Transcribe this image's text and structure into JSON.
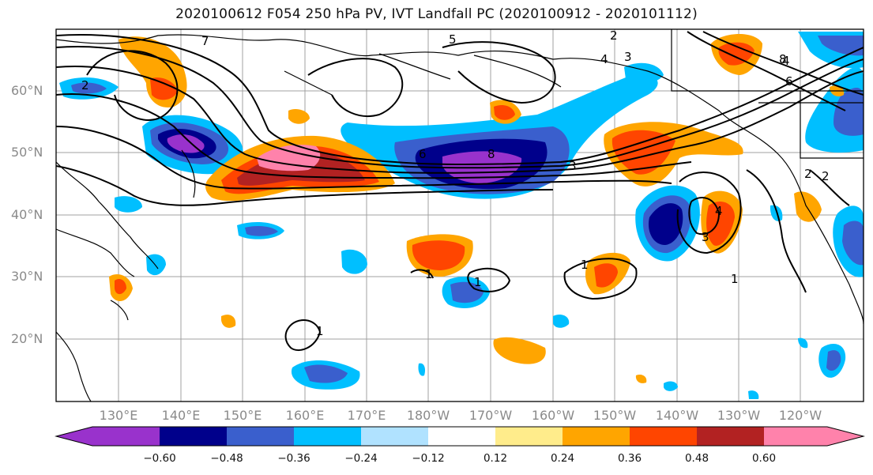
{
  "title": "2020100612 F054 250 hPa PV, IVT Landfall PC (2020100912 - 2020101112)",
  "lat_labels": [
    "60°N",
    "50°N",
    "40°N",
    "30°N",
    "20°N"
  ],
  "lon_labels": [
    "130°E",
    "140°E",
    "150°E",
    "160°E",
    "170°E",
    "180°W",
    "170°W",
    "160°W",
    "150°W",
    "140°W",
    "130°W",
    "120°W"
  ],
  "colorbar": {
    "ticks": [
      "−0.60",
      "−0.48",
      "−0.36",
      "−0.24",
      "−0.12",
      "0.12",
      "0.24",
      "0.36",
      "0.48",
      "0.60"
    ],
    "colors": [
      "#9932cc",
      "#00008b",
      "#3a5fcd",
      "#00bfff",
      "#b0e2ff",
      "#ffffff",
      "#ffec8b",
      "#ffa500",
      "#ff4500",
      "#b22222",
      "#ff82ab"
    ]
  },
  "contour_labels": [
    "7",
    "5",
    "2",
    "4",
    "3",
    "2",
    "8",
    "6",
    "4",
    "2",
    "8",
    "6",
    "3",
    "4",
    "3",
    "1",
    "1",
    "1",
    "1",
    "1",
    "2"
  ]
}
